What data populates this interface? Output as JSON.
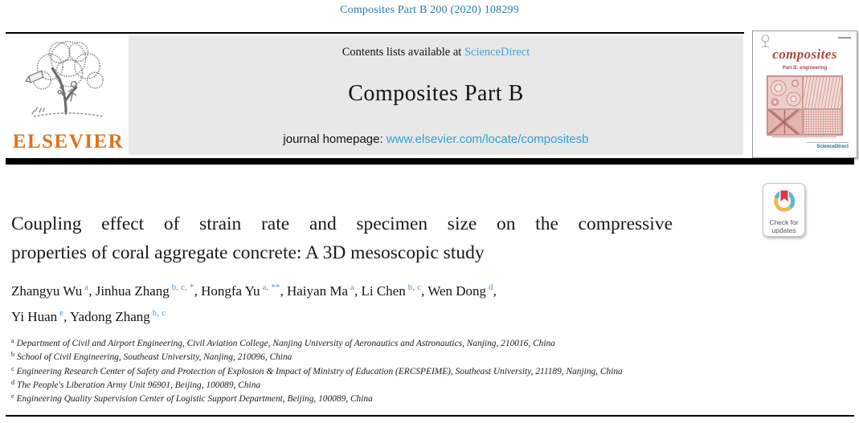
{
  "page": {
    "journal_ref": "Composites Part B 200 (2020) 108299"
  },
  "banner": {
    "contents_text": "Contents lists available at ",
    "sciencedirect_link": "ScienceDirect",
    "journal_name": "Composites Part B",
    "homepage_label": "journal homepage: ",
    "homepage_url": "www.elsevier.com/locate/compositesb"
  },
  "publisher": {
    "wordmark": "ELSEVIER"
  },
  "cover": {
    "title": "composites",
    "subtitle": "Part B: engineering",
    "sciencedirect_label": "ScienceDirect"
  },
  "badge": {
    "line1": "Check for",
    "line2": "updates"
  },
  "article": {
    "title_line1": "Coupling effect of strain rate and specimen size on the compressive",
    "title_line2": "properties of coral aggregate concrete: A 3D mesoscopic study",
    "authors": [
      {
        "name": "Zhangyu Wu",
        "sup": "a"
      },
      {
        "name": "Jinhua Zhang",
        "sup": "b, c, *"
      },
      {
        "name": "Hongfa Yu",
        "sup": "a, **"
      },
      {
        "name": "Haiyan Ma",
        "sup": "a"
      },
      {
        "name": "Li Chen",
        "sup": "b, c"
      },
      {
        "name": "Wen Dong",
        "sup": "d"
      },
      {
        "name": "Yi Huan",
        "sup": "e"
      },
      {
        "name": "Yadong Zhang",
        "sup": "b, c"
      }
    ],
    "authors_line_break_after": 5,
    "affiliations": [
      {
        "sup": "a",
        "text": "Department of Civil and Airport Engineering, Civil Aviation College, Nanjing University of Aeronautics and Astronautics, Nanjing, 210016, China"
      },
      {
        "sup": "b",
        "text": "School of Civil Engineering, Southeast University, Nanjing, 210096, China"
      },
      {
        "sup": "c",
        "text": "Engineering Research Center of Safety and Protection of Explosion & Impact of Ministry of Education (ERCSPEIME), Southeast University, 211189, Nanjing, China"
      },
      {
        "sup": "d",
        "text": "The People's Liberation Army Unit 96901, Beijing, 100089, China"
      },
      {
        "sup": "e",
        "text": "Engineering Quality Supervision Center of Logistic Support Department, Beijing, 100089, China"
      }
    ]
  },
  "colors": {
    "header_teal": "#2b7ba8",
    "link_light_blue": "#45a3d2",
    "url_blue": "#2fa0d4",
    "elsevier_orange": "#df741d",
    "cover_red": "#ad4843",
    "banner_gray": "#e8e8e8",
    "badge_yellow": "#e5bb49",
    "badge_teal": "#57b8d9",
    "badge_red": "#d23c42"
  }
}
